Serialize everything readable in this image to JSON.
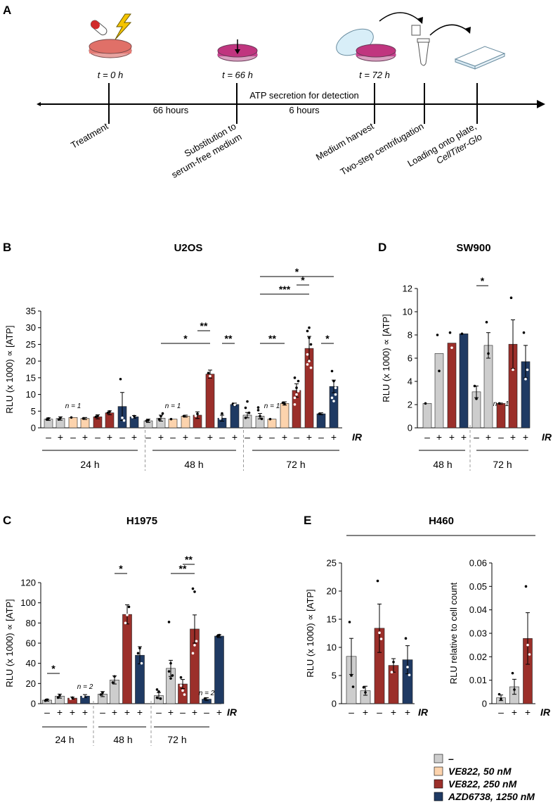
{
  "colors": {
    "none": "#cdcdcd",
    "ve50": "#fcd3ad",
    "ve250": "#9b2f2a",
    "azd": "#1f3a63",
    "axis": "#000000"
  },
  "panels": {
    "a": {
      "letter": "A",
      "time_labels": [
        "t = 0 h",
        "t = 66 h",
        "t = 72 h"
      ],
      "duration_labels": [
        "66 hours",
        "6 hours"
      ],
      "atp_label": "ATP secretion for detection",
      "steps": [
        "Treatment",
        "Substitution to",
        "serum-free medium",
        "Medium harvest",
        "Two-step centrifugation",
        "Loading onto plate,",
        "CellTiter-Glo"
      ]
    },
    "b": {
      "letter": "B",
      "title": "U2OS"
    },
    "c": {
      "letter": "C",
      "title": "H1975"
    },
    "d": {
      "letter": "D",
      "title": "SW900"
    },
    "e": {
      "letter": "E",
      "title": "H460"
    }
  },
  "legend": [
    {
      "key": "none",
      "label": "–"
    },
    {
      "key": "ve50",
      "label": "VE822, 50 nM"
    },
    {
      "key": "ve250",
      "label": "VE822, 250 nM"
    },
    {
      "key": "azd",
      "label": "AZD6738, 1250 nM"
    }
  ],
  "chart_data": [
    {
      "id": "B",
      "type": "bar",
      "title": "U2OS",
      "ylabel": "RLU (x 1000) ∝ [ATP]",
      "ylim": [
        0,
        35
      ],
      "yticks": [
        0,
        5,
        10,
        15,
        20,
        25,
        30,
        35
      ],
      "ir_label": "IR",
      "bars": [
        {
          "ir": "–",
          "treatment": "none",
          "time": "24 h",
          "value": 2.6
        },
        {
          "ir": "+",
          "treatment": "none",
          "time": "24 h",
          "value": 2.8
        },
        {
          "ir": "–",
          "treatment": "ve50",
          "time": "24 h",
          "value": 3.1
        },
        {
          "ir": "+",
          "treatment": "ve50",
          "time": "24 h",
          "value": 2.8
        },
        {
          "ir": "–",
          "treatment": "ve250",
          "time": "24 h",
          "value": 3.3
        },
        {
          "ir": "+",
          "treatment": "ve250",
          "time": "24 h",
          "value": 4.5
        },
        {
          "ir": "–",
          "treatment": "azd",
          "time": "24 h",
          "value": 6.4
        },
        {
          "ir": "+",
          "treatment": "azd",
          "time": "24 h",
          "value": 3.3
        },
        {
          "ir": "–",
          "treatment": "none",
          "time": "48 h",
          "value": 2.1
        },
        {
          "ir": "+",
          "treatment": "none",
          "time": "48 h",
          "value": 2.9
        },
        {
          "ir": "–",
          "treatment": "ve50",
          "time": "48 h",
          "value": 2.6
        },
        {
          "ir": "+",
          "treatment": "ve50",
          "time": "48 h",
          "value": 3.5
        },
        {
          "ir": "–",
          "treatment": "ve250",
          "time": "48 h",
          "value": 3.8
        },
        {
          "ir": "+",
          "treatment": "ve250",
          "time": "48 h",
          "value": 16.1
        },
        {
          "ir": "–",
          "treatment": "azd",
          "time": "48 h",
          "value": 2.9
        },
        {
          "ir": "+",
          "treatment": "azd",
          "time": "48 h",
          "value": 7.0
        },
        {
          "ir": "–",
          "treatment": "none",
          "time": "72 h",
          "value": 3.8
        },
        {
          "ir": "+",
          "treatment": "none",
          "time": "72 h",
          "value": 3.5
        },
        {
          "ir": "–",
          "treatment": "ve50",
          "time": "72 h",
          "value": 2.6
        },
        {
          "ir": "+",
          "treatment": "ve50",
          "time": "72 h",
          "value": 7.3
        },
        {
          "ir": "–",
          "treatment": "ve250",
          "time": "72 h",
          "value": 11.2
        },
        {
          "ir": "+",
          "treatment": "ve250",
          "time": "72 h",
          "value": 23.8
        },
        {
          "ir": "–",
          "treatment": "azd",
          "time": "72 h",
          "value": 4.2
        },
        {
          "ir": "+",
          "treatment": "azd",
          "time": "72 h",
          "value": 12.4
        }
      ],
      "groups": [
        "24 h",
        "48 h",
        "72 h"
      ],
      "annotations": [
        "n = 1",
        "n = 1",
        "n = 1"
      ],
      "significance": [
        "*",
        "**",
        "**",
        "**",
        "*",
        "***",
        "*",
        "*"
      ]
    },
    {
      "id": "C",
      "type": "bar",
      "title": "H1975",
      "ylabel": "RLU (x 1000) ∝ [ATP]",
      "ylim": [
        0,
        120
      ],
      "yticks": [
        0,
        20,
        40,
        60,
        80,
        100,
        120
      ],
      "ir_label": "IR",
      "bars": [
        {
          "ir": "–",
          "treatment": "none",
          "time": "24 h",
          "value": 3.5
        },
        {
          "ir": "+",
          "treatment": "none",
          "time": "24 h",
          "value": 7.5
        },
        {
          "ir": "+",
          "treatment": "ve250",
          "time": "24 h",
          "value": 5.5
        },
        {
          "ir": "+",
          "treatment": "azd",
          "time": "24 h",
          "value": 7.5
        },
        {
          "ir": "–",
          "treatment": "none",
          "time": "48 h",
          "value": 9.5
        },
        {
          "ir": "+",
          "treatment": "none",
          "time": "48 h",
          "value": 23.5
        },
        {
          "ir": "+",
          "treatment": "ve250",
          "time": "48 h",
          "value": 88.5
        },
        {
          "ir": "+",
          "treatment": "azd",
          "time": "48 h",
          "value": 48.0
        },
        {
          "ir": "–",
          "treatment": "none",
          "time": "72 h",
          "value": 8.0
        },
        {
          "ir": "+",
          "treatment": "none",
          "time": "72 h",
          "value": 35.0
        },
        {
          "ir": "–",
          "treatment": "ve250",
          "time": "72 h",
          "value": 19.5
        },
        {
          "ir": "+",
          "treatment": "ve250",
          "time": "72 h",
          "value": 74.0
        },
        {
          "ir": "–",
          "treatment": "azd",
          "time": "72 h",
          "value": 4.5
        },
        {
          "ir": "+",
          "treatment": "azd",
          "time": "72 h",
          "value": 67.0
        }
      ],
      "groups": [
        "24 h",
        "48 h",
        "72 h"
      ],
      "annotations": [
        "n = 2",
        "n = 2"
      ],
      "significance": [
        "*",
        "*",
        "**",
        "**"
      ]
    },
    {
      "id": "D",
      "type": "bar",
      "title": "SW900",
      "ylabel": "RLU (x 1000) ∝ [ATP]",
      "ylim": [
        0,
        12
      ],
      "yticks": [
        0,
        2,
        4,
        6,
        8,
        10,
        12
      ],
      "ir_label": "IR",
      "bars": [
        {
          "ir": "–",
          "treatment": "none",
          "time": "48 h",
          "value": 2.1
        },
        {
          "ir": "+",
          "treatment": "none",
          "time": "48 h",
          "value": 6.4
        },
        {
          "ir": "+",
          "treatment": "ve250",
          "time": "48 h",
          "value": 7.3
        },
        {
          "ir": "+",
          "treatment": "azd",
          "time": "48 h",
          "value": 8.1
        },
        {
          "ir": "–",
          "treatment": "none",
          "time": "72 h",
          "value": 3.1
        },
        {
          "ir": "+",
          "treatment": "none",
          "time": "72 h",
          "value": 7.1
        },
        {
          "ir": "–",
          "treatment": "ve250",
          "time": "72 h",
          "value": 2.1
        },
        {
          "ir": "+",
          "treatment": "ve250",
          "time": "72 h",
          "value": 7.2
        },
        {
          "ir": "+",
          "treatment": "azd",
          "time": "72 h",
          "value": 5.7
        }
      ],
      "groups": [
        "48 h",
        "72 h"
      ],
      "annotations": [
        "n = 1"
      ],
      "significance": [
        "*"
      ]
    },
    {
      "id": "E1",
      "type": "bar",
      "title": "H460",
      "ylabel": "RLU (x 1000) ∝ [ATP]",
      "ylim": [
        0,
        25
      ],
      "yticks": [
        0,
        5,
        10,
        15,
        20,
        25
      ],
      "ir_label": "IR",
      "bars": [
        {
          "ir": "–",
          "treatment": "none",
          "value": 8.4
        },
        {
          "ir": "+",
          "treatment": "none",
          "value": 2.3
        },
        {
          "ir": "–",
          "treatment": "ve250",
          "value": 13.4
        },
        {
          "ir": "+",
          "treatment": "ve250",
          "value": 6.8
        },
        {
          "ir": "+",
          "treatment": "azd",
          "value": 7.8
        }
      ]
    },
    {
      "id": "E2",
      "type": "bar",
      "ylabel": "RLU relative to cell count",
      "ylim": [
        0,
        0.06
      ],
      "yticks": [
        0,
        0.01,
        0.02,
        0.03,
        0.04,
        0.05,
        0.06
      ],
      "ir_label": "IR",
      "bars": [
        {
          "ir": "–",
          "treatment": "none",
          "value": 0.0025
        },
        {
          "ir": "+",
          "treatment": "none",
          "value": 0.0072
        },
        {
          "ir": "+",
          "treatment": "ve250",
          "value": 0.0278
        }
      ]
    }
  ]
}
